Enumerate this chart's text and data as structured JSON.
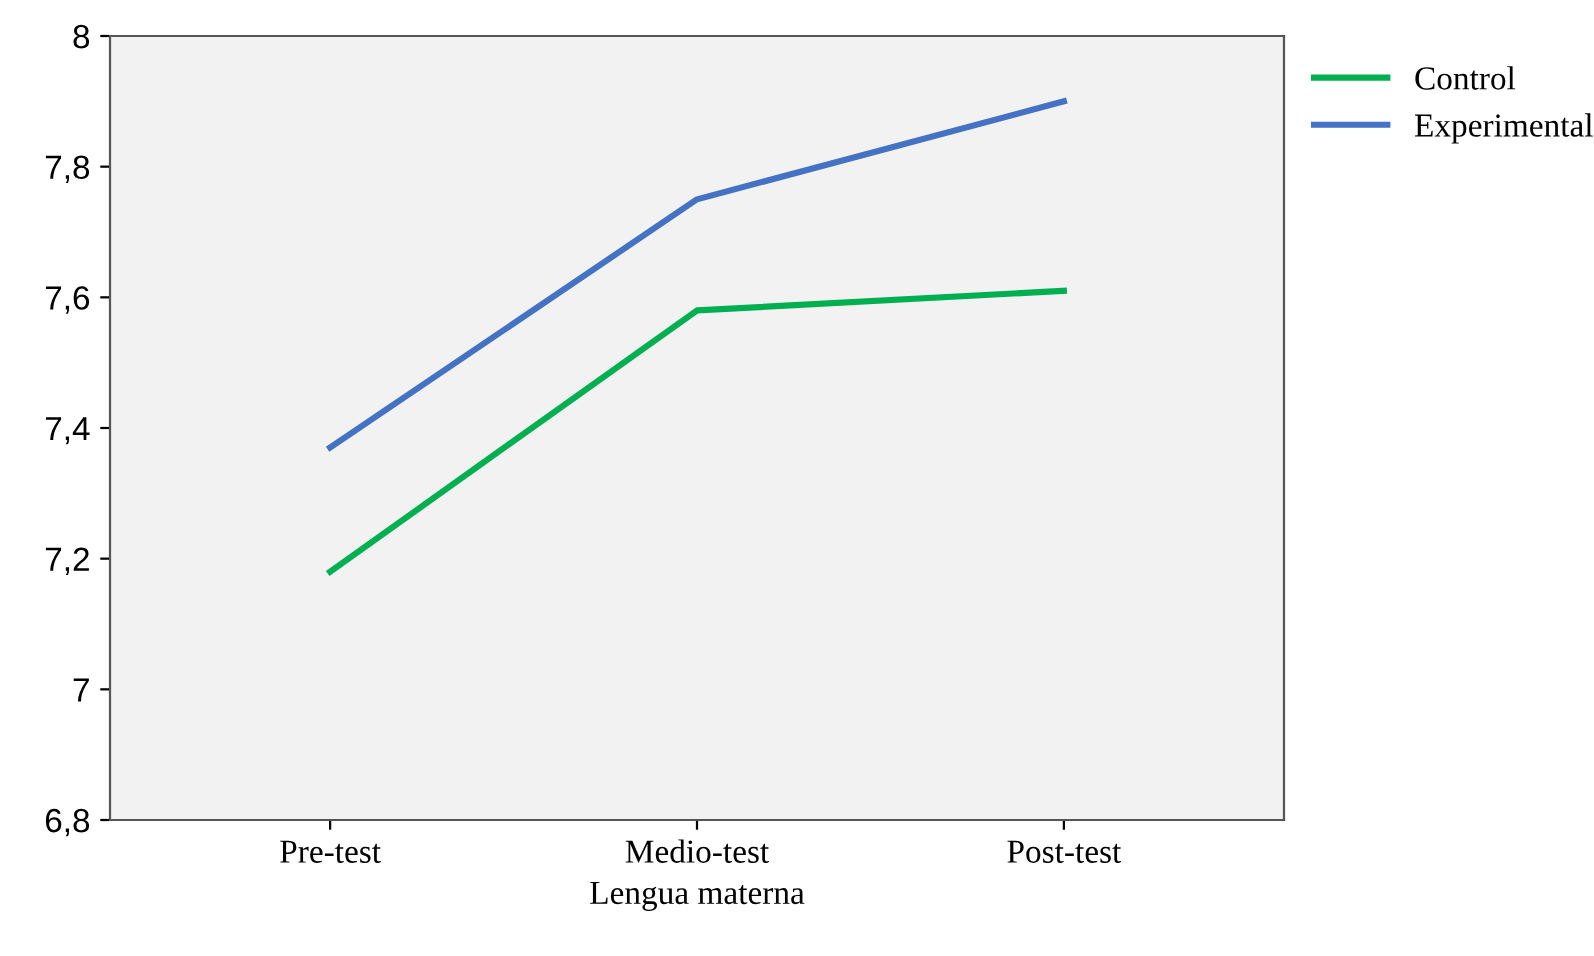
{
  "chart_data": {
    "type": "line",
    "xlabel": "Lengua materna",
    "categories": [
      "Pre-test",
      "Medio-test",
      "Post-test"
    ],
    "series": [
      {
        "name": "Control",
        "color": "#00b050",
        "values": [
          7.18,
          7.58,
          7.61
        ]
      },
      {
        "name": "Experimental",
        "color": "#4472c4",
        "values": [
          7.37,
          7.75,
          7.9
        ]
      }
    ],
    "ylim": [
      6.8,
      8
    ],
    "yticks": [
      {
        "value": 6.8,
        "label": "6,8"
      },
      7,
      {
        "value": 7.2,
        "label": "7,2"
      },
      {
        "value": 7.4,
        "label": "7,4"
      },
      {
        "value": 7.6,
        "label": "7,6"
      },
      {
        "value": 7.8,
        "label": "7,8"
      },
      8
    ],
    "legend": "top right",
    "marker": "none",
    "line_style": "solid",
    "grid": false
  }
}
